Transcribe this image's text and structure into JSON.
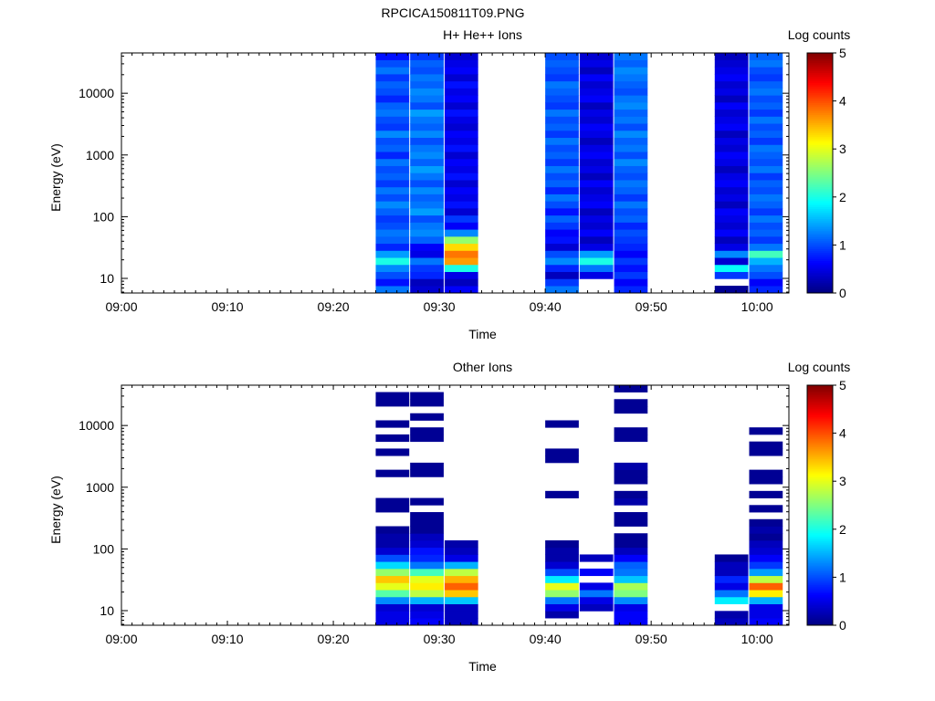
{
  "figure": {
    "title": "RPCICA150811T09.PNG"
  },
  "colorbar": {
    "label": "Log counts",
    "ticks": [
      "0",
      "1",
      "2",
      "3",
      "4",
      "5"
    ],
    "range": [
      0,
      5
    ],
    "colormap": [
      "#000080",
      "#0000ff",
      "#0080ff",
      "#00ffff",
      "#80ff80",
      "#ffff00",
      "#ff8000",
      "#ff0000",
      "#800000"
    ]
  },
  "chart_data": [
    {
      "type": "heatmap",
      "title": "H+ He++ Ions",
      "xlabel": "Time",
      "ylabel": "Energy (eV)",
      "x_ticks": [
        "09:00",
        "09:10",
        "09:20",
        "09:30",
        "09:40",
        "09:50",
        "10:00"
      ],
      "y_ticks": [
        "10",
        "100",
        "1000",
        "10000"
      ],
      "y_scale": "log",
      "xlim": [
        "09:00",
        "10:03"
      ],
      "ylim": [
        5.8,
        45000
      ],
      "scans": [
        {
          "start": "09:24:00",
          "end": "09:27:10",
          "profile": [
            1.2,
            0.7,
            1.0,
            1.3,
            2.0,
            1.4,
            0.8,
            1.1,
            1.2,
            1.0,
            0.9,
            1.1,
            1.3,
            1.0,
            1.2,
            0.9,
            1.1,
            1.0,
            1.2,
            0.8,
            1.1,
            1.0,
            1.3,
            0.9,
            1.0,
            1.2,
            1.1,
            0.8,
            1.0,
            1.1,
            0.9,
            1.2,
            1.0,
            0.7
          ]
        },
        {
          "start": "09:27:15",
          "end": "09:30:25",
          "profile": [
            0.4,
            0.3,
            0.8,
            0.9,
            1.2,
            0.5,
            0.6,
            1.1,
            1.3,
            1.2,
            1.0,
            1.4,
            1.2,
            1.1,
            1.3,
            1.0,
            1.2,
            1.4,
            1.1,
            1.3,
            1.2,
            1.0,
            1.3,
            1.1,
            1.2,
            1.4,
            1.0,
            1.2,
            1.3,
            1.1,
            1.2,
            1.0,
            1.1,
            0.9
          ]
        },
        {
          "start": "09:30:30",
          "end": "09:33:40",
          "profile": [
            0.6,
            0.3,
            0.5,
            2.0,
            3.6,
            3.8,
            3.3,
            2.6,
            1.3,
            0.6,
            0.9,
            0.4,
            0.7,
            0.5,
            0.6,
            0.4,
            0.7,
            0.5,
            0.6,
            0.4,
            0.7,
            0.5,
            0.6,
            0.4,
            0.5,
            0.7,
            0.4,
            0.6,
            0.5,
            0.7,
            0.4,
            0.6,
            0.5,
            0.4
          ]
        },
        {
          "start": "09:40:00",
          "end": "09:43:10",
          "profile": [
            1.2,
            0.9,
            0.3,
            0.8,
            1.3,
            1.0,
            0.4,
            0.7,
            0.6,
            0.9,
            1.1,
            0.7,
            1.0,
            1.2,
            0.8,
            1.1,
            1.0,
            1.2,
            0.9,
            1.1,
            1.0,
            1.2,
            0.9,
            1.1,
            1.0,
            1.2,
            0.9,
            1.0,
            1.1,
            1.2,
            0.9,
            1.0,
            1.1,
            1.0
          ]
        },
        {
          "start": "09:43:15",
          "end": "09:46:25",
          "profile": [
            null,
            null,
            0.5,
            1.2,
            2.0,
            1.4,
            0.5,
            0.3,
            0.6,
            0.4,
            0.5,
            0.3,
            0.6,
            0.5,
            0.4,
            0.6,
            0.3,
            0.5,
            0.4,
            0.6,
            0.5,
            0.3,
            0.5,
            0.6,
            0.4,
            0.5,
            0.3,
            0.6,
            0.5,
            0.4,
            0.6,
            0.3,
            0.5,
            0.4
          ]
        },
        {
          "start": "09:46:30",
          "end": "09:49:40",
          "profile": [
            0.8,
            0.6,
            0.9,
            0.7,
            0.9,
            0.6,
            0.8,
            0.9,
            1.0,
            0.8,
            1.1,
            1.0,
            1.2,
            0.9,
            1.1,
            1.2,
            1.0,
            1.1,
            1.3,
            1.0,
            1.2,
            1.1,
            1.3,
            1.0,
            1.2,
            1.1,
            1.3,
            1.2,
            1.0,
            1.1,
            1.2,
            1.3,
            1.1,
            1.2
          ]
        },
        {
          "start": "09:56:00",
          "end": "09:59:10",
          "profile": [
            0.1,
            null,
            0.9,
            1.9,
            0.4,
            1.3,
            0.5,
            0.3,
            0.6,
            0.4,
            0.5,
            0.6,
            0.3,
            0.5,
            0.4,
            0.6,
            0.5,
            0.3,
            0.5,
            0.6,
            0.4,
            0.5,
            0.3,
            0.6,
            0.5,
            0.4,
            0.6,
            0.3,
            0.5,
            0.4,
            0.6,
            0.5,
            0.4,
            0.3
          ]
        },
        {
          "start": "09:59:15",
          "end": "10:02:25",
          "profile": [
            0.8,
            0.6,
            1.0,
            1.2,
            1.5,
            2.2,
            1.2,
            0.9,
            1.1,
            1.0,
            1.2,
            0.9,
            1.1,
            1.2,
            1.0,
            1.1,
            0.9,
            1.2,
            1.0,
            1.1,
            1.2,
            0.9,
            1.1,
            1.0,
            1.2,
            0.9,
            1.1,
            1.0,
            1.2,
            1.1,
            0.9,
            1.0,
            1.2,
            1.1
          ]
        }
      ]
    },
    {
      "type": "heatmap",
      "title": "Other Ions",
      "xlabel": "Time",
      "ylabel": "Energy (eV)",
      "x_ticks": [
        "09:00",
        "09:10",
        "09:20",
        "09:30",
        "09:40",
        "09:50",
        "10:00"
      ],
      "y_ticks": [
        "10",
        "100",
        "1000",
        "10000"
      ],
      "y_scale": "log",
      "xlim": [
        "09:00",
        "10:03"
      ],
      "ylim": [
        5.8,
        45000
      ],
      "scans": [
        {
          "start": "09:24:00",
          "end": "09:27:10",
          "profile": [
            0.5,
            0.5,
            0.4,
            1.3,
            2.3,
            3.0,
            3.4,
            2.6,
            1.7,
            1.0,
            0.4,
            0.2,
            0.2,
            0.1,
            null,
            null,
            0.1,
            0.1,
            null,
            null,
            null,
            0.1,
            null,
            null,
            0.1,
            null,
            0.1,
            null,
            0.1,
            null,
            null,
            0.1,
            0.1,
            null
          ]
        },
        {
          "start": "09:27:15",
          "end": "09:30:25",
          "profile": [
            0.6,
            0.5,
            0.4,
            1.5,
            2.8,
            3.2,
            3.0,
            2.2,
            1.2,
            0.8,
            0.7,
            0.4,
            0.3,
            0.1,
            0.1,
            0.1,
            null,
            0.1,
            null,
            null,
            null,
            0.1,
            0.1,
            null,
            null,
            null,
            0.1,
            0.1,
            null,
            0.1,
            null,
            0.1,
            0.1,
            null
          ]
        },
        {
          "start": "09:30:30",
          "end": "09:33:40",
          "profile": [
            0.3,
            0.3,
            0.3,
            1.6,
            3.4,
            3.9,
            3.5,
            2.8,
            1.5,
            0.5,
            0.3,
            0.2,
            null,
            null,
            null,
            null,
            null,
            null,
            null,
            null,
            null,
            null,
            null,
            null,
            null,
            null,
            null,
            null,
            null,
            null,
            null,
            null,
            null,
            null
          ]
        },
        {
          "start": "09:40:00",
          "end": "09:43:10",
          "profile": [
            null,
            0.2,
            0.5,
            1.2,
            2.6,
            3.0,
            1.8,
            1.0,
            0.4,
            0.2,
            0.2,
            0.1,
            null,
            null,
            null,
            null,
            null,
            null,
            0.1,
            null,
            null,
            null,
            null,
            0.1,
            0.1,
            null,
            null,
            null,
            0.1,
            null,
            null,
            null,
            null,
            null
          ]
        },
        {
          "start": "09:43:15",
          "end": "09:46:25",
          "profile": [
            null,
            null,
            0.3,
            0.5,
            1.2,
            0.5,
            null,
            0.6,
            null,
            0.3,
            null,
            null,
            null,
            null,
            null,
            null,
            null,
            null,
            null,
            null,
            null,
            null,
            null,
            null,
            null,
            null,
            null,
            null,
            null,
            null,
            null,
            null,
            null,
            null
          ]
        },
        {
          "start": "09:46:30",
          "end": "09:49:40",
          "profile": [
            0.6,
            0.6,
            0.5,
            1.3,
            2.5,
            2.7,
            1.6,
            1.2,
            1.1,
            0.6,
            0.3,
            0.1,
            0.1,
            null,
            0.1,
            0.1,
            null,
            0.2,
            0.1,
            null,
            0.1,
            0.1,
            0.2,
            null,
            null,
            null,
            0.1,
            0.1,
            null,
            null,
            0.1,
            0.1,
            null,
            0.1
          ]
        },
        {
          "start": "09:56:00",
          "end": "09:59:10",
          "profile": [
            0.3,
            0.2,
            null,
            1.8,
            1.2,
            0.5,
            0.8,
            0.3,
            0.3,
            0.1,
            null,
            null,
            null,
            null,
            null,
            null,
            null,
            null,
            null,
            null,
            null,
            null,
            null,
            null,
            null,
            null,
            null,
            null,
            null,
            null,
            null,
            null,
            null,
            null
          ]
        },
        {
          "start": "09:59:15",
          "end": "10:02:25",
          "profile": [
            0.6,
            0.5,
            0.5,
            1.5,
            3.2,
            3.9,
            2.8,
            1.4,
            0.9,
            0.6,
            0.4,
            0.3,
            0.1,
            0.2,
            0.1,
            null,
            0.1,
            null,
            0.1,
            null,
            0.1,
            0.1,
            null,
            null,
            0.1,
            0.1,
            null,
            0.1,
            null,
            null,
            null,
            null,
            null,
            null
          ]
        }
      ]
    }
  ]
}
